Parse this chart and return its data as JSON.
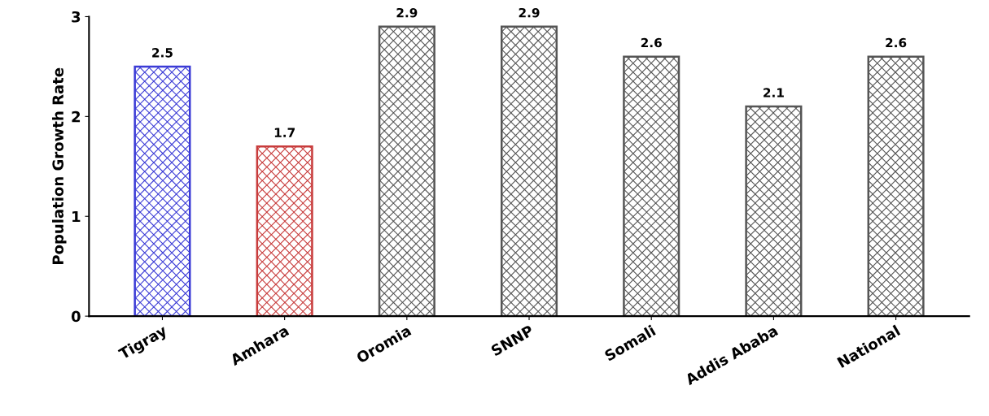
{
  "chart_data": {
    "type": "bar",
    "ylabel": "Population Growth Rate",
    "categories": [
      "Tigray",
      "Amhara",
      "Oromia",
      "SNNP",
      "Somali",
      "Addis Ababa",
      "National"
    ],
    "values": [
      2.5,
      1.7,
      2.9,
      2.9,
      2.6,
      2.1,
      2.6
    ],
    "colors": [
      "#3b3bd6",
      "#c83c3c",
      "#555555",
      "#555555",
      "#555555",
      "#555555",
      "#555555"
    ],
    "ylim": [
      0,
      3
    ],
    "yticks": [
      0,
      1,
      2,
      3
    ],
    "grid": false,
    "data_labels": true
  }
}
